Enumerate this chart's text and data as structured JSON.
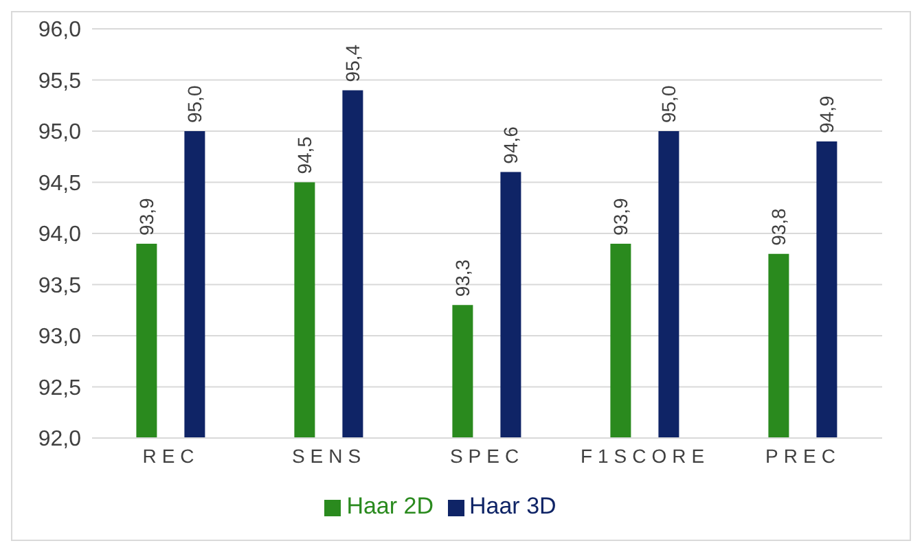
{
  "chart_data": {
    "type": "bar",
    "categories": [
      "REC",
      "SENS",
      "SPEC",
      "F1SCORE",
      "PREC"
    ],
    "series": [
      {
        "name": "Haar 2D",
        "color": "#2a8a1e",
        "values": [
          93.9,
          94.5,
          93.3,
          93.9,
          93.8
        ],
        "value_labels": [
          "93,9",
          "94,5",
          "93,3",
          "93,9",
          "93,8"
        ]
      },
      {
        "name": "Haar 3D",
        "color": "#0f2466",
        "values": [
          95.0,
          95.4,
          94.6,
          95.0,
          94.9
        ],
        "value_labels": [
          "95,0",
          "95,4",
          "94,6",
          "95,0",
          "94,9"
        ]
      }
    ],
    "ylim": [
      92,
      96
    ],
    "yticks": [
      {
        "value": 92,
        "label": "92,0"
      },
      {
        "value": 92.5,
        "label": "92,5"
      },
      {
        "value": 93,
        "label": "93,0"
      },
      {
        "value": 93.5,
        "label": "93,5"
      },
      {
        "value": 94,
        "label": "94,0"
      },
      {
        "value": 94.5,
        "label": "94,5"
      },
      {
        "value": 95,
        "label": "95,0"
      },
      {
        "value": 95.5,
        "label": "95,5"
      },
      {
        "value": 96,
        "label": "96,0"
      }
    ],
    "grid": "y",
    "legend": "bottom"
  }
}
